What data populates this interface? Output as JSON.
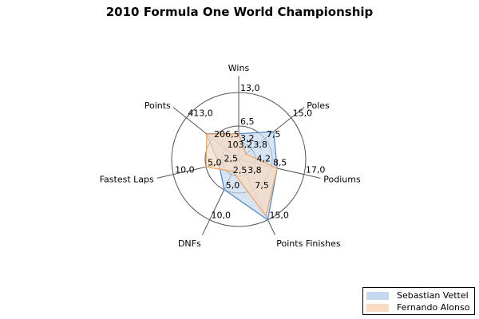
{
  "chart_data": {
    "type": "radar",
    "title": "2010 Formula One World Championship",
    "axes": [
      {
        "name": "Wins",
        "max": 13,
        "ticks": [
          "3,2",
          "6,5",
          "13,0"
        ]
      },
      {
        "name": "Poles",
        "max": 15,
        "ticks": [
          "3,8",
          "7,5",
          "15,0"
        ]
      },
      {
        "name": "Podiums",
        "max": 17,
        "ticks": [
          "4,2",
          "8,5",
          "17,0"
        ]
      },
      {
        "name": "Points Finishes",
        "max": 15,
        "ticks": [
          "3,8",
          "7,5",
          "15,0"
        ]
      },
      {
        "name": "DNFs",
        "max": 10,
        "ticks": [
          "2,5",
          "5,0",
          "10,0"
        ]
      },
      {
        "name": "Fastest Laps",
        "max": 10,
        "ticks": [
          "2,5",
          "5,0",
          "10,0"
        ]
      },
      {
        "name": "Points",
        "max": 413,
        "ticks": [
          "103,2",
          "206,5",
          "413,0"
        ]
      }
    ],
    "series": [
      {
        "name": "Sebastian Vettel",
        "values": [
          5,
          10,
          10,
          15,
          5,
          3,
          256
        ],
        "stroke": "#4a86c8",
        "fill": "#c5d9ee"
      },
      {
        "name": "Fernando Alonso",
        "values": [
          5,
          2,
          10,
          14,
          2,
          5,
          252
        ],
        "stroke": "#f0a35e",
        "fill": "#fadcc0"
      }
    ],
    "grid": true,
    "legend_position": "bottom-right"
  }
}
